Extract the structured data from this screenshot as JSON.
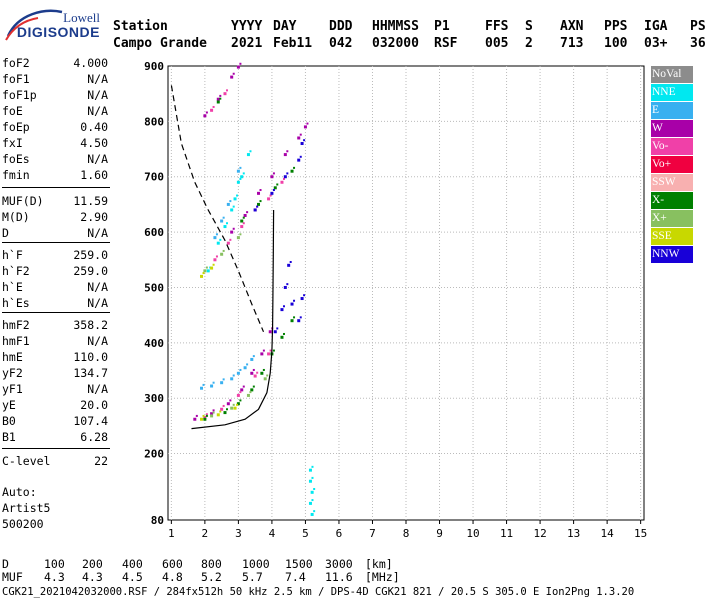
{
  "logo": {
    "line1": "Lowell",
    "line2": "DIGISONDE"
  },
  "header": {
    "row1": [
      "Station",
      "YYYY",
      "DAY",
      "DDD",
      "HHMMSS",
      "P1",
      "FFS",
      "S",
      "AXN",
      "PPS",
      "IGA",
      "PS"
    ],
    "row2": [
      "Campo Grande",
      "2021",
      "Feb11",
      "042",
      "032000",
      "RSF",
      "005",
      "2",
      "713",
      "100",
      "03+",
      "36"
    ]
  },
  "parameters": [
    {
      "k": "foF2",
      "v": "4.000"
    },
    {
      "k": "foF1",
      "v": "N/A"
    },
    {
      "k": "foF1p",
      "v": "N/A"
    },
    {
      "k": "foE",
      "v": "N/A"
    },
    {
      "k": "foEp",
      "v": "0.40"
    },
    {
      "k": "fxI",
      "v": "4.50"
    },
    {
      "k": "foEs",
      "v": "N/A"
    },
    {
      "k": "fmin",
      "v": "1.60"
    },
    {
      "k": "MUF(D)",
      "v": "11.59"
    },
    {
      "k": "M(D)",
      "v": "2.90"
    },
    {
      "k": "D",
      "v": "N/A"
    },
    {
      "k": "h`F",
      "v": "259.0"
    },
    {
      "k": "h`F2",
      "v": "259.0"
    },
    {
      "k": "h`E",
      "v": "N/A"
    },
    {
      "k": "h`Es",
      "v": "N/A"
    },
    {
      "k": "hmF2",
      "v": "358.2"
    },
    {
      "k": "hmF1",
      "v": "N/A"
    },
    {
      "k": "hmE",
      "v": "110.0"
    },
    {
      "k": "yF2",
      "v": "134.7"
    },
    {
      "k": "yF1",
      "v": "N/A"
    },
    {
      "k": "yE",
      "v": "20.0"
    },
    {
      "k": "B0",
      "v": "107.4"
    },
    {
      "k": "B1",
      "v": "6.28"
    },
    {
      "k": "C-level",
      "v": "22"
    }
  ],
  "auto": {
    "l1": "Auto:",
    "l2": "Artist5",
    "l3": "500200"
  },
  "legend": [
    {
      "label": "NoVal",
      "color": "#8c8c8c"
    },
    {
      "label": "NNE",
      "color": "#00e8f0"
    },
    {
      "label": "E",
      "color": "#38b0f0"
    },
    {
      "label": "W",
      "color": "#a800a8"
    },
    {
      "label": "Vo-",
      "color": "#f040a8"
    },
    {
      "label": "Vo+",
      "color": "#f00040"
    },
    {
      "label": "SSW",
      "color": "#f8b0b0"
    },
    {
      "label": "X-",
      "color": "#008000"
    },
    {
      "label": "X+",
      "color": "#88c060"
    },
    {
      "label": "SSE",
      "color": "#c8d800"
    },
    {
      "label": "NNW",
      "color": "#1800d8"
    }
  ],
  "muf_table": {
    "d_label": "D",
    "d_values": [
      "100",
      "200",
      "400",
      "600",
      "800",
      "1000",
      "1500",
      "3000"
    ],
    "d_unit": "[km]",
    "muf_label": "MUF",
    "muf_values": [
      "4.3",
      "4.3",
      "4.5",
      "4.8",
      "5.2",
      "5.7",
      "7.4",
      "11.6"
    ],
    "muf_unit": "[MHz]"
  },
  "footer": "CGK21_2021042032000.RSF / 284fx512h 50 kHz 2.5 km / DPS-4D CGK21 821 / 20.5 S 305.0 E Ion2Png 1.3.20",
  "chart_data": {
    "type": "scatter",
    "x_ticks": [
      1,
      2,
      3,
      4,
      5,
      6,
      7,
      8,
      9,
      10,
      11,
      12,
      13,
      14,
      15
    ],
    "y_ticks": [
      80,
      200,
      300,
      400,
      500,
      600,
      700,
      800,
      900
    ],
    "xlim": [
      0.9,
      15.1
    ],
    "ylim": [
      80,
      900
    ],
    "grid": "dotted",
    "profile": [
      [
        1.6,
        245
      ],
      [
        2.6,
        252
      ],
      [
        3.2,
        262
      ],
      [
        3.6,
        280
      ],
      [
        3.85,
        310
      ],
      [
        3.95,
        345
      ],
      [
        4.0,
        385
      ],
      [
        4.02,
        430
      ],
      [
        4.03,
        480
      ],
      [
        4.04,
        560
      ],
      [
        4.05,
        640
      ]
    ],
    "dashed": [
      [
        1.0,
        865
      ],
      [
        1.3,
        760
      ],
      [
        1.7,
        690
      ],
      [
        2.1,
        640
      ],
      [
        2.6,
        585
      ],
      [
        3.0,
        530
      ],
      [
        3.4,
        470
      ],
      [
        3.75,
        420
      ]
    ],
    "traces": [
      {
        "color": "#00e8f0",
        "points": [
          [
            2.1,
            530
          ],
          [
            2.4,
            580
          ],
          [
            2.8,
            640
          ],
          [
            3.1,
            700
          ],
          [
            3.3,
            740
          ],
          [
            2.9,
            660
          ],
          [
            3.0,
            690
          ],
          [
            2.6,
            610
          ]
        ]
      },
      {
        "color": "#38b0f0",
        "points": [
          [
            1.9,
            318
          ],
          [
            2.2,
            322
          ],
          [
            2.5,
            328
          ],
          [
            2.8,
            335
          ],
          [
            3.0,
            345
          ],
          [
            3.2,
            355
          ],
          [
            3.4,
            370
          ],
          [
            2.3,
            590
          ],
          [
            2.5,
            620
          ],
          [
            2.7,
            650
          ],
          [
            3.0,
            710
          ]
        ]
      },
      {
        "color": "#a800a8",
        "points": [
          [
            1.7,
            262
          ],
          [
            2.2,
            272
          ],
          [
            2.7,
            290
          ],
          [
            3.1,
            315
          ],
          [
            3.4,
            345
          ],
          [
            3.7,
            380
          ],
          [
            3.95,
            420
          ],
          [
            2.8,
            600
          ],
          [
            3.2,
            630
          ],
          [
            3.6,
            670
          ],
          [
            4.0,
            700
          ],
          [
            4.4,
            740
          ],
          [
            4.8,
            770
          ],
          [
            5.0,
            790
          ],
          [
            2.0,
            810
          ],
          [
            2.4,
            840
          ],
          [
            2.8,
            880
          ],
          [
            3.0,
            898
          ]
        ]
      },
      {
        "color": "#f040a8",
        "points": [
          [
            2.0,
            265
          ],
          [
            2.5,
            280
          ],
          [
            3.0,
            305
          ],
          [
            3.5,
            340
          ],
          [
            3.9,
            380
          ],
          [
            2.3,
            550
          ],
          [
            2.7,
            580
          ],
          [
            3.1,
            610
          ],
          [
            3.5,
            640
          ],
          [
            3.9,
            660
          ],
          [
            4.3,
            690
          ],
          [
            2.2,
            820
          ],
          [
            2.6,
            850
          ]
        ]
      },
      {
        "color": "#008000",
        "points": [
          [
            2.0,
            262
          ],
          [
            2.6,
            274
          ],
          [
            3.0,
            290
          ],
          [
            3.4,
            315
          ],
          [
            3.7,
            345
          ],
          [
            4.0,
            380
          ],
          [
            4.3,
            410
          ],
          [
            4.6,
            440
          ],
          [
            3.1,
            620
          ],
          [
            3.6,
            650
          ],
          [
            4.1,
            680
          ],
          [
            4.6,
            710
          ],
          [
            2.4,
            835
          ]
        ]
      },
      {
        "color": "#88c060",
        "points": [
          [
            2.2,
            268
          ],
          [
            2.8,
            282
          ],
          [
            3.3,
            305
          ],
          [
            3.8,
            335
          ],
          [
            2.0,
            530
          ],
          [
            2.5,
            560
          ],
          [
            3.0,
            590
          ]
        ]
      },
      {
        "color": "#c8d800",
        "points": [
          [
            1.9,
            262
          ],
          [
            2.4,
            270
          ],
          [
            2.9,
            282
          ],
          [
            1.9,
            520
          ],
          [
            2.2,
            535
          ]
        ]
      },
      {
        "color": "#1800d8",
        "points": [
          [
            4.1,
            420
          ],
          [
            4.3,
            460
          ],
          [
            4.4,
            500
          ],
          [
            4.5,
            540
          ],
          [
            4.6,
            470
          ],
          [
            4.8,
            440
          ],
          [
            4.9,
            480
          ],
          [
            3.5,
            640
          ],
          [
            4.0,
            670
          ],
          [
            4.4,
            700
          ],
          [
            4.8,
            730
          ],
          [
            4.9,
            760
          ]
        ]
      },
      {
        "color": "#00e8f0",
        "points": [
          [
            5.15,
            170
          ],
          [
            5.15,
            150
          ],
          [
            5.2,
            130
          ],
          [
            5.15,
            110
          ],
          [
            5.2,
            90
          ]
        ]
      }
    ]
  }
}
